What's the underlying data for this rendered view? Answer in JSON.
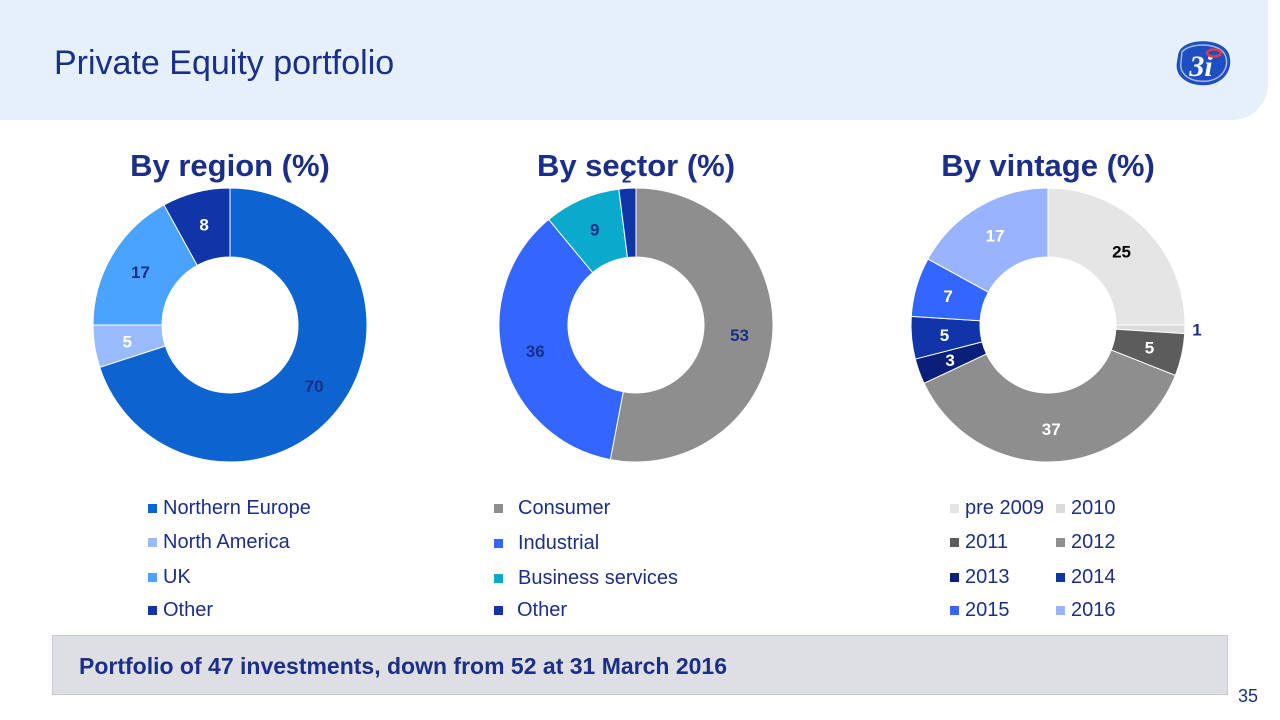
{
  "header": {
    "title": "Private Equity portfolio"
  },
  "chart_data": [
    {
      "type": "pie",
      "title": "By region (%)",
      "categories": [
        "Northern Europe",
        "North America",
        "UK",
        "Other"
      ],
      "values": [
        70,
        5,
        17,
        8
      ],
      "labels": [
        "70",
        "5",
        "17",
        "8"
      ],
      "colors": [
        "#0d63cf",
        "#99bbff",
        "#4aa3ff",
        "#0f35a8"
      ],
      "label_colors": [
        "#1b2f8a",
        "#ffffff",
        "#1b2f8a",
        "#ffffff"
      ]
    },
    {
      "type": "pie",
      "title": "By sector (%)",
      "categories": [
        "Consumer",
        "Industrial",
        "Business services",
        "Other"
      ],
      "values": [
        53,
        36,
        9,
        2
      ],
      "labels": [
        "53",
        "36",
        "9",
        "2"
      ],
      "colors": [
        "#8e8e8e",
        "#3366ff",
        "#0aaacc",
        "#0f35a8"
      ],
      "label_colors": [
        "#1b2f8a",
        "#1b2f8a",
        "#1b2f8a",
        "#1b2f8a"
      ]
    },
    {
      "type": "pie",
      "title": "By vintage (%)",
      "categories": [
        "pre 2009",
        "2010",
        "2011",
        "2012",
        "2013",
        "2014",
        "2015",
        "2016"
      ],
      "values": [
        25,
        1,
        5,
        37,
        3,
        5,
        7,
        17
      ],
      "labels": [
        "25",
        "1",
        "5",
        "37",
        "3",
        "5",
        "7",
        "17"
      ],
      "colors": [
        "#e5e5e5",
        "#dbdbdb",
        "#5c5c5c",
        "#8e8e8e",
        "#0a1f7a",
        "#0f35a8",
        "#3366ff",
        "#99b3ff"
      ],
      "label_colors": [
        "#000000",
        "#1b2f8a",
        "#ffffff",
        "#ffffff",
        "#ffffff",
        "#ffffff",
        "#ffffff",
        "#ffffff"
      ]
    }
  ],
  "legends": [
    {
      "items": [
        "Northern Europe",
        "North America",
        "UK",
        "Other"
      ]
    },
    {
      "items": [
        "Consumer",
        "Industrial",
        "Business services",
        "Other"
      ]
    },
    {
      "items": [
        "pre 2009",
        "2010",
        "2011",
        "2012",
        "2013",
        "2014",
        "2015",
        "2016"
      ]
    }
  ],
  "footer": {
    "text": "Portfolio of 47 investments, down from 52 at 31 March 2016"
  },
  "page_number": "35",
  "logo": {
    "text": "3i",
    "icon": "3i-logo-icon"
  },
  "colors": {
    "title": "#1b2f8a",
    "header_bg": "#e6f0fb",
    "footer_bg": "#dedfe3"
  }
}
